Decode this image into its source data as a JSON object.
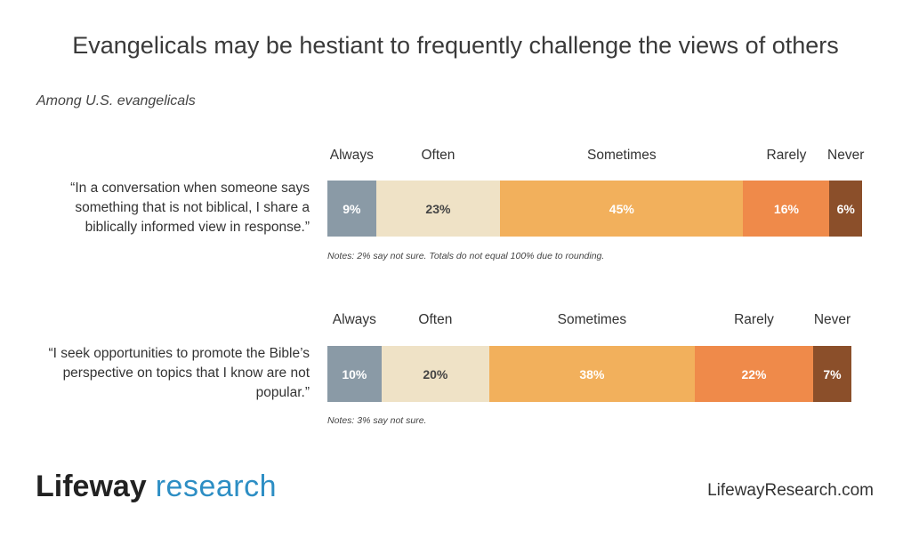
{
  "title": "Evangelicals may be hestiant to frequently challenge the views of others",
  "subtitle": "Among U.S. evangelicals",
  "colors": {
    "always": "#8a9aa6",
    "often": "#efe2c6",
    "sometimes": "#f2b05c",
    "rarely": "#ef8a4a",
    "never": "#8b4f2a"
  },
  "chart_data": [
    {
      "type": "bar",
      "stacked": true,
      "orientation": "horizontal",
      "question": "“In a conversation when someone says something that is not biblical, I share a biblically informed view in response.”",
      "categories": [
        "Always",
        "Often",
        "Sometimes",
        "Rarely",
        "Never"
      ],
      "values": [
        9,
        23,
        45,
        16,
        6
      ],
      "labels": [
        "9%",
        "23%",
        "45%",
        "16%",
        "6%"
      ],
      "note": "Notes: 2% say not sure. Totals do not equal 100% due to rounding."
    },
    {
      "type": "bar",
      "stacked": true,
      "orientation": "horizontal",
      "question": "“I seek opportunities to promote the Bible’s perspective on topics that I know are not popular.”",
      "categories": [
        "Always",
        "Often",
        "Sometimes",
        "Rarely",
        "Never"
      ],
      "values": [
        10,
        20,
        38,
        22,
        7
      ],
      "labels": [
        "10%",
        "20%",
        "38%",
        "22%",
        "7%"
      ],
      "note": "Notes: 3% say not sure."
    }
  ],
  "footer": {
    "logo_part1": "Lifeway",
    "logo_part2": "research",
    "website": "LifewayResearch.com"
  }
}
